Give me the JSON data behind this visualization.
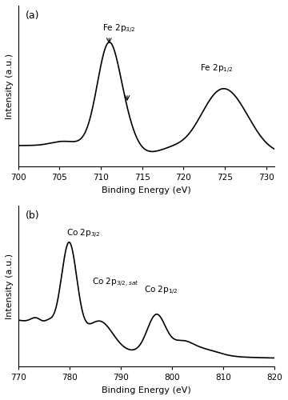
{
  "fig_width": 3.6,
  "fig_height": 5.0,
  "dpi": 100,
  "panel_a": {
    "label": "(a)",
    "xlabel": "Binding Energy (eV)",
    "ylabel": "Intensity (a.u.)",
    "xlim": [
      700,
      731
    ],
    "xticks": [
      700,
      705,
      710,
      715,
      720,
      725,
      730
    ]
  },
  "panel_b": {
    "label": "(b)",
    "xlabel": "Binding Energy (eV)",
    "ylabel": "Intensity (a.u.)",
    "xlim": [
      770,
      820
    ],
    "xticks": [
      770,
      780,
      790,
      800,
      810,
      820
    ]
  },
  "line_color": "#000000",
  "line_width": 1.2,
  "background_color": "#ffffff"
}
